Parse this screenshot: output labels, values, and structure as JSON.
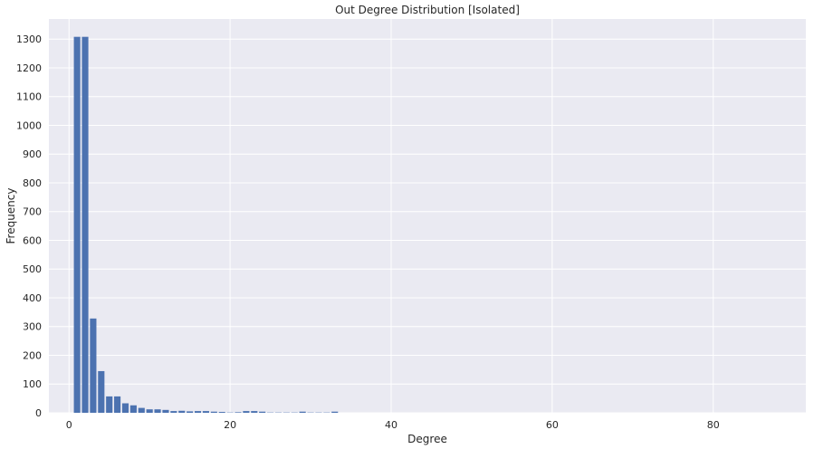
{
  "chart_data": {
    "type": "bar",
    "title": "Out Degree Distribution [Isolated]",
    "xlabel": "Degree",
    "ylabel": "Frequency",
    "xlim": [
      -2.5,
      91.5
    ],
    "ylim": [
      0,
      1370
    ],
    "xticks": [
      0,
      20,
      40,
      60,
      80
    ],
    "yticks": [
      0,
      100,
      200,
      300,
      400,
      500,
      600,
      700,
      800,
      900,
      1000,
      1100,
      1200,
      1300
    ],
    "grid": true,
    "background": "#eaeaf2",
    "grid_color": "#ffffff",
    "bar_color": "#4c72b0",
    "bar_width": 0.8,
    "x": [
      1,
      2,
      3,
      4,
      5,
      6,
      7,
      8,
      9,
      10,
      11,
      12,
      13,
      14,
      15,
      16,
      17,
      18,
      19,
      20,
      21,
      22,
      23,
      24,
      25,
      26,
      27,
      28,
      29,
      30,
      31,
      32,
      33
    ],
    "values": [
      1308,
      1308,
      328,
      145,
      57,
      57,
      33,
      26,
      17,
      12,
      12,
      10,
      6,
      7,
      5,
      6,
      6,
      4,
      3,
      1,
      2,
      6,
      6,
      4,
      1,
      1,
      1,
      1,
      4,
      1,
      1,
      1,
      4
    ]
  }
}
